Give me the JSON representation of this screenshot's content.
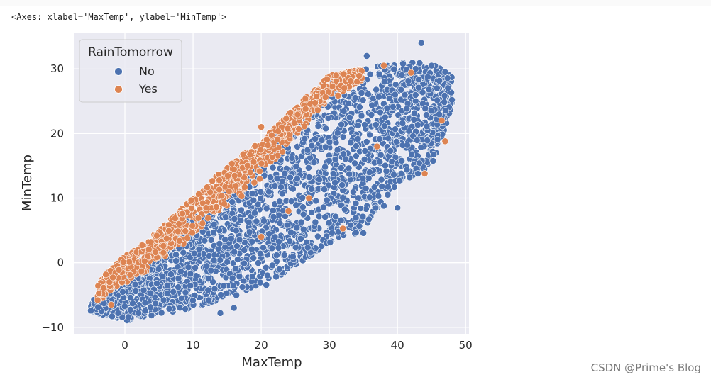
{
  "output": {
    "repr_text": "<Axes: xlabel='MaxTemp', ylabel='MinTemp'>"
  },
  "watermark": "CSDN @Prime's Blog",
  "chart_data": {
    "type": "scatter",
    "xlabel": "MaxTemp",
    "ylabel": "MinTemp",
    "xlim": [
      -7.5,
      50.5
    ],
    "ylim": [
      -11,
      35.5
    ],
    "xticks": [
      0,
      10,
      20,
      30,
      40,
      50
    ],
    "yticks": [
      -10,
      0,
      10,
      20,
      30
    ],
    "grid": true,
    "legend_title": "RainTomorrow",
    "legend_placement": "top-left",
    "background": "#eaeaf2",
    "series": [
      {
        "name": "No",
        "color": "#4c72b0",
        "band": {
          "lower": [
            [
              -5,
              -7.5
            ],
            [
              0,
              -9
            ],
            [
              10,
              -7
            ],
            [
              20,
              -4
            ],
            [
              30,
              3
            ],
            [
              35,
              5
            ],
            [
              40,
              12
            ],
            [
              45,
              15
            ],
            [
              48,
              24
            ]
          ],
          "upper": [
            [
              -5,
              -6
            ],
            [
              0,
              -2
            ],
            [
              5,
              3
            ],
            [
              10,
              7
            ],
            [
              20,
              17
            ],
            [
              30,
              28
            ],
            [
              35,
              30
            ],
            [
              40,
              31
            ],
            [
              45,
              31
            ],
            [
              48,
              29
            ]
          ]
        },
        "points": [
          [
            -5,
            -7.4
          ],
          [
            -1,
            -7.8
          ],
          [
            0.5,
            -8.4
          ],
          [
            2,
            -7.8
          ],
          [
            14,
            -7.8
          ],
          [
            16,
            -7
          ],
          [
            35,
            4.6
          ],
          [
            38,
            8.8
          ],
          [
            40,
            8.5
          ],
          [
            43,
            13.8
          ],
          [
            43.5,
            34
          ],
          [
            45,
            30.5
          ],
          [
            47,
            29.5
          ],
          [
            48,
            25.2
          ],
          [
            35.5,
            32
          ]
        ]
      },
      {
        "name": "Yes",
        "color": "#dd8452",
        "band": {
          "lower": [
            [
              -4,
              -6
            ],
            [
              0,
              -4
            ],
            [
              5,
              0
            ],
            [
              10,
              4
            ],
            [
              15,
              8
            ],
            [
              20,
              13
            ],
            [
              25,
              19
            ],
            [
              30,
              25
            ],
            [
              35,
              28
            ]
          ],
          "upper": [
            [
              -4,
              -3
            ],
            [
              0,
              1
            ],
            [
              5,
              5
            ],
            [
              10,
              10
            ],
            [
              15,
              15
            ],
            [
              20,
              19
            ],
            [
              25,
              24
            ],
            [
              30,
              29
            ],
            [
              35,
              30
            ]
          ]
        },
        "points": [
          [
            -4,
            -5.8
          ],
          [
            -2,
            -6.5
          ],
          [
            20,
            21
          ],
          [
            31,
            29
          ],
          [
            38,
            30.5
          ],
          [
            42,
            29.4
          ],
          [
            44,
            13.8
          ],
          [
            46.5,
            22
          ],
          [
            47,
            18.8
          ],
          [
            32,
            5.3
          ],
          [
            37,
            18
          ],
          [
            27,
            10
          ],
          [
            24,
            8
          ],
          [
            20,
            4
          ]
        ]
      }
    ]
  }
}
